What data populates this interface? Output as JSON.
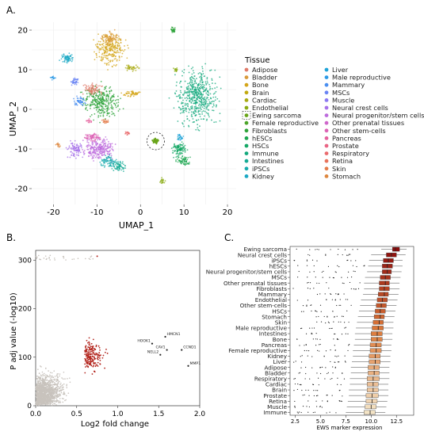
{
  "panels": {
    "A": {
      "label": "A.",
      "chart_data": {
        "type": "scatter",
        "xlabel": "UMAP_1",
        "ylabel": "UMAP_2",
        "xlim": [
          -25,
          22
        ],
        "ylim": [
          -24,
          22
        ],
        "xticks": [
          "-20",
          "-10",
          "0",
          "10",
          "20"
        ],
        "yticks": [
          "20",
          "10",
          "0",
          "-10",
          "-20"
        ],
        "grid": true,
        "legend": {
          "title": "Tissue",
          "placement": "right",
          "left_column": [
            "Adipose",
            "Bladder",
            "Bone",
            "Brain",
            "Cardiac",
            "Endothelial",
            "Ewing sarcoma",
            "Female reproductive",
            "Fibroblasts",
            "hESCs",
            "HSCs",
            "Immune",
            "Intestines",
            "iPSCs",
            "Kidney"
          ],
          "right_column": [
            "Liver",
            "Male reproductive",
            "Mammary",
            "MSCs",
            "Muscle",
            "Neural crest cells",
            "Neural progenitor/stem cells",
            "Other prenatal tissues",
            "Other stem-cells",
            "Pancreas",
            "Prostate",
            "Respiratory",
            "Retina",
            "Skin",
            "Stomach"
          ],
          "colors": {
            "Adipose": "#e07b6a",
            "Bladder": "#d99a3a",
            "Bone": "#d4a51a",
            "Brain": "#c2a90f",
            "Cardiac": "#a9aa12",
            "Endothelial": "#8aab12",
            "Ewing sarcoma": "#6aa51a",
            "Female reproductive": "#4ca428",
            "Fibroblasts": "#2ea33a",
            "hESCs": "#1ba64f",
            "HSCs": "#15a866",
            "Immune": "#14a97d",
            "Intestines": "#16ab95",
            "iPSCs": "#18abad",
            "Kidney": "#1ba8c4",
            "Liver": "#1fa3d8",
            "Male reproductive": "#2e9ae6",
            "Mammary": "#4a8ff0",
            "MSCs": "#6a84f4",
            "Muscle": "#8b7af2",
            "Neural crest cells": "#a772ea",
            "Neural progenitor/stem cells": "#bd6cdd",
            "Other prenatal tissues": "#cf67cb",
            "Other stem-cells": "#dc63b5",
            "Pancreas": "#e5629e",
            "Prostate": "#ea6585",
            "Respiratory": "#ea6b6e",
            "Retina": "#e8735c",
            "Skin": "#e47d4c",
            "Stomach": "#de8840"
          }
        },
        "clusters": [
          {
            "tissue": "Ewing sarcoma",
            "x": 3.5,
            "y": -8.0,
            "highlight": true
          },
          {
            "tissue": "Bone",
            "x": -7,
            "y": 14
          },
          {
            "tissue": "Immune",
            "x": 13,
            "y": 2
          },
          {
            "tissue": "Fibroblasts",
            "x": -9,
            "y": 2
          },
          {
            "tissue": "Kidney",
            "x": -17,
            "y": 12
          },
          {
            "tissue": "Neural crest cells",
            "x": -12,
            "y": -10
          },
          {
            "tissue": "Intestines",
            "x": -5,
            "y": -14
          }
        ]
      }
    },
    "B": {
      "label": "B.",
      "chart_data": {
        "type": "scatter",
        "xlabel": "Log2 fold change",
        "ylabel": "P adj value (-log10)",
        "xlim": [
          0.0,
          2.0
        ],
        "ylim": [
          0,
          320
        ],
        "xticks": [
          "0.0",
          "0.5",
          "1.0",
          "1.5",
          "2.0"
        ],
        "yticks": [
          "0",
          "100",
          "200",
          "300"
        ],
        "threshold_x": 0.6,
        "colors": {
          "background": "#c8c3bd",
          "highlight": "#b3261e"
        },
        "labeled_genes": [
          {
            "name": "HMCN1",
            "x": 1.58,
            "y": 142
          },
          {
            "name": "HOOK1",
            "x": 1.42,
            "y": 128
          },
          {
            "name": "CAV1",
            "x": 1.6,
            "y": 115
          },
          {
            "name": "CCND1",
            "x": 1.78,
            "y": 115
          },
          {
            "name": "NELL2",
            "x": 1.52,
            "y": 105
          },
          {
            "name": "MMP1",
            "x": 1.86,
            "y": 82
          }
        ]
      }
    },
    "C": {
      "label": "C.",
      "chart_data": {
        "type": "box",
        "xlabel": "EWS marker expression",
        "xlim": [
          2.0,
          14.2
        ],
        "xticks": [
          "2.5",
          "5.0",
          "7.5",
          "10.0",
          "12.5"
        ],
        "categories": [
          "Ewing sarcoma",
          "Neural crest cells",
          "iPSCs",
          "hESCs",
          "Neural progenitor/stem cells",
          "MSCs",
          "Other prenatal tissues",
          "Fibroblasts",
          "Mammary",
          "Endothelial",
          "Other stem-cells",
          "HSCs",
          "Stomach",
          "Skin",
          "Male reproductive",
          "Intestines",
          "Bone",
          "Pancreas",
          "Female reproductive",
          "Kidney",
          "Liver",
          "Adipose",
          "Bladder",
          "Respiratory",
          "Cardiac",
          "Brain",
          "Prostate",
          "Retina",
          "Muscle",
          "Immune"
        ],
        "medians": [
          12.4,
          12.0,
          11.7,
          11.6,
          11.6,
          11.4,
          11.4,
          11.3,
          11.3,
          11.1,
          11.0,
          10.9,
          10.9,
          10.8,
          10.7,
          10.6,
          10.6,
          10.5,
          10.5,
          10.4,
          10.4,
          10.3,
          10.3,
          10.2,
          10.2,
          10.2,
          10.1,
          10.1,
          10.0,
          9.9
        ],
        "q1": [
          12.1,
          11.5,
          11.2,
          11.1,
          11.1,
          10.9,
          10.8,
          10.8,
          10.7,
          10.6,
          10.5,
          10.4,
          10.3,
          10.2,
          10.1,
          10.0,
          10.0,
          9.9,
          9.9,
          9.8,
          9.8,
          9.7,
          9.7,
          9.6,
          9.6,
          9.6,
          9.5,
          9.5,
          9.4,
          9.3
        ],
        "q3": [
          12.8,
          12.5,
          12.2,
          12.1,
          12.0,
          11.9,
          11.8,
          11.8,
          11.7,
          11.6,
          11.5,
          11.4,
          11.3,
          11.2,
          11.2,
          11.1,
          11.1,
          11.0,
          11.0,
          10.9,
          10.9,
          10.8,
          10.8,
          10.8,
          10.7,
          10.7,
          10.7,
          10.6,
          10.5,
          10.4
        ],
        "whisker_low": [
          11.0,
          10.0,
          9.8,
          9.7,
          9.6,
          9.4,
          9.3,
          9.3,
          9.2,
          9.0,
          8.9,
          8.8,
          8.7,
          8.6,
          8.5,
          8.4,
          8.4,
          8.3,
          8.2,
          8.2,
          8.1,
          8.0,
          8.0,
          7.9,
          7.9,
          7.8,
          7.8,
          7.7,
          7.6,
          7.5
        ],
        "whisker_high": [
          13.5,
          13.4,
          13.1,
          13.1,
          13.0,
          12.9,
          12.8,
          12.8,
          12.7,
          12.6,
          12.5,
          12.4,
          12.3,
          12.2,
          12.2,
          12.1,
          12.1,
          12.0,
          12.0,
          11.9,
          11.9,
          11.8,
          11.8,
          11.8,
          11.7,
          11.7,
          11.7,
          11.6,
          11.5,
          11.4
        ],
        "colors": {
          "high": "#8b0c0c",
          "mid": "#dd7a3a",
          "low": "#f4e4c6"
        }
      }
    }
  }
}
